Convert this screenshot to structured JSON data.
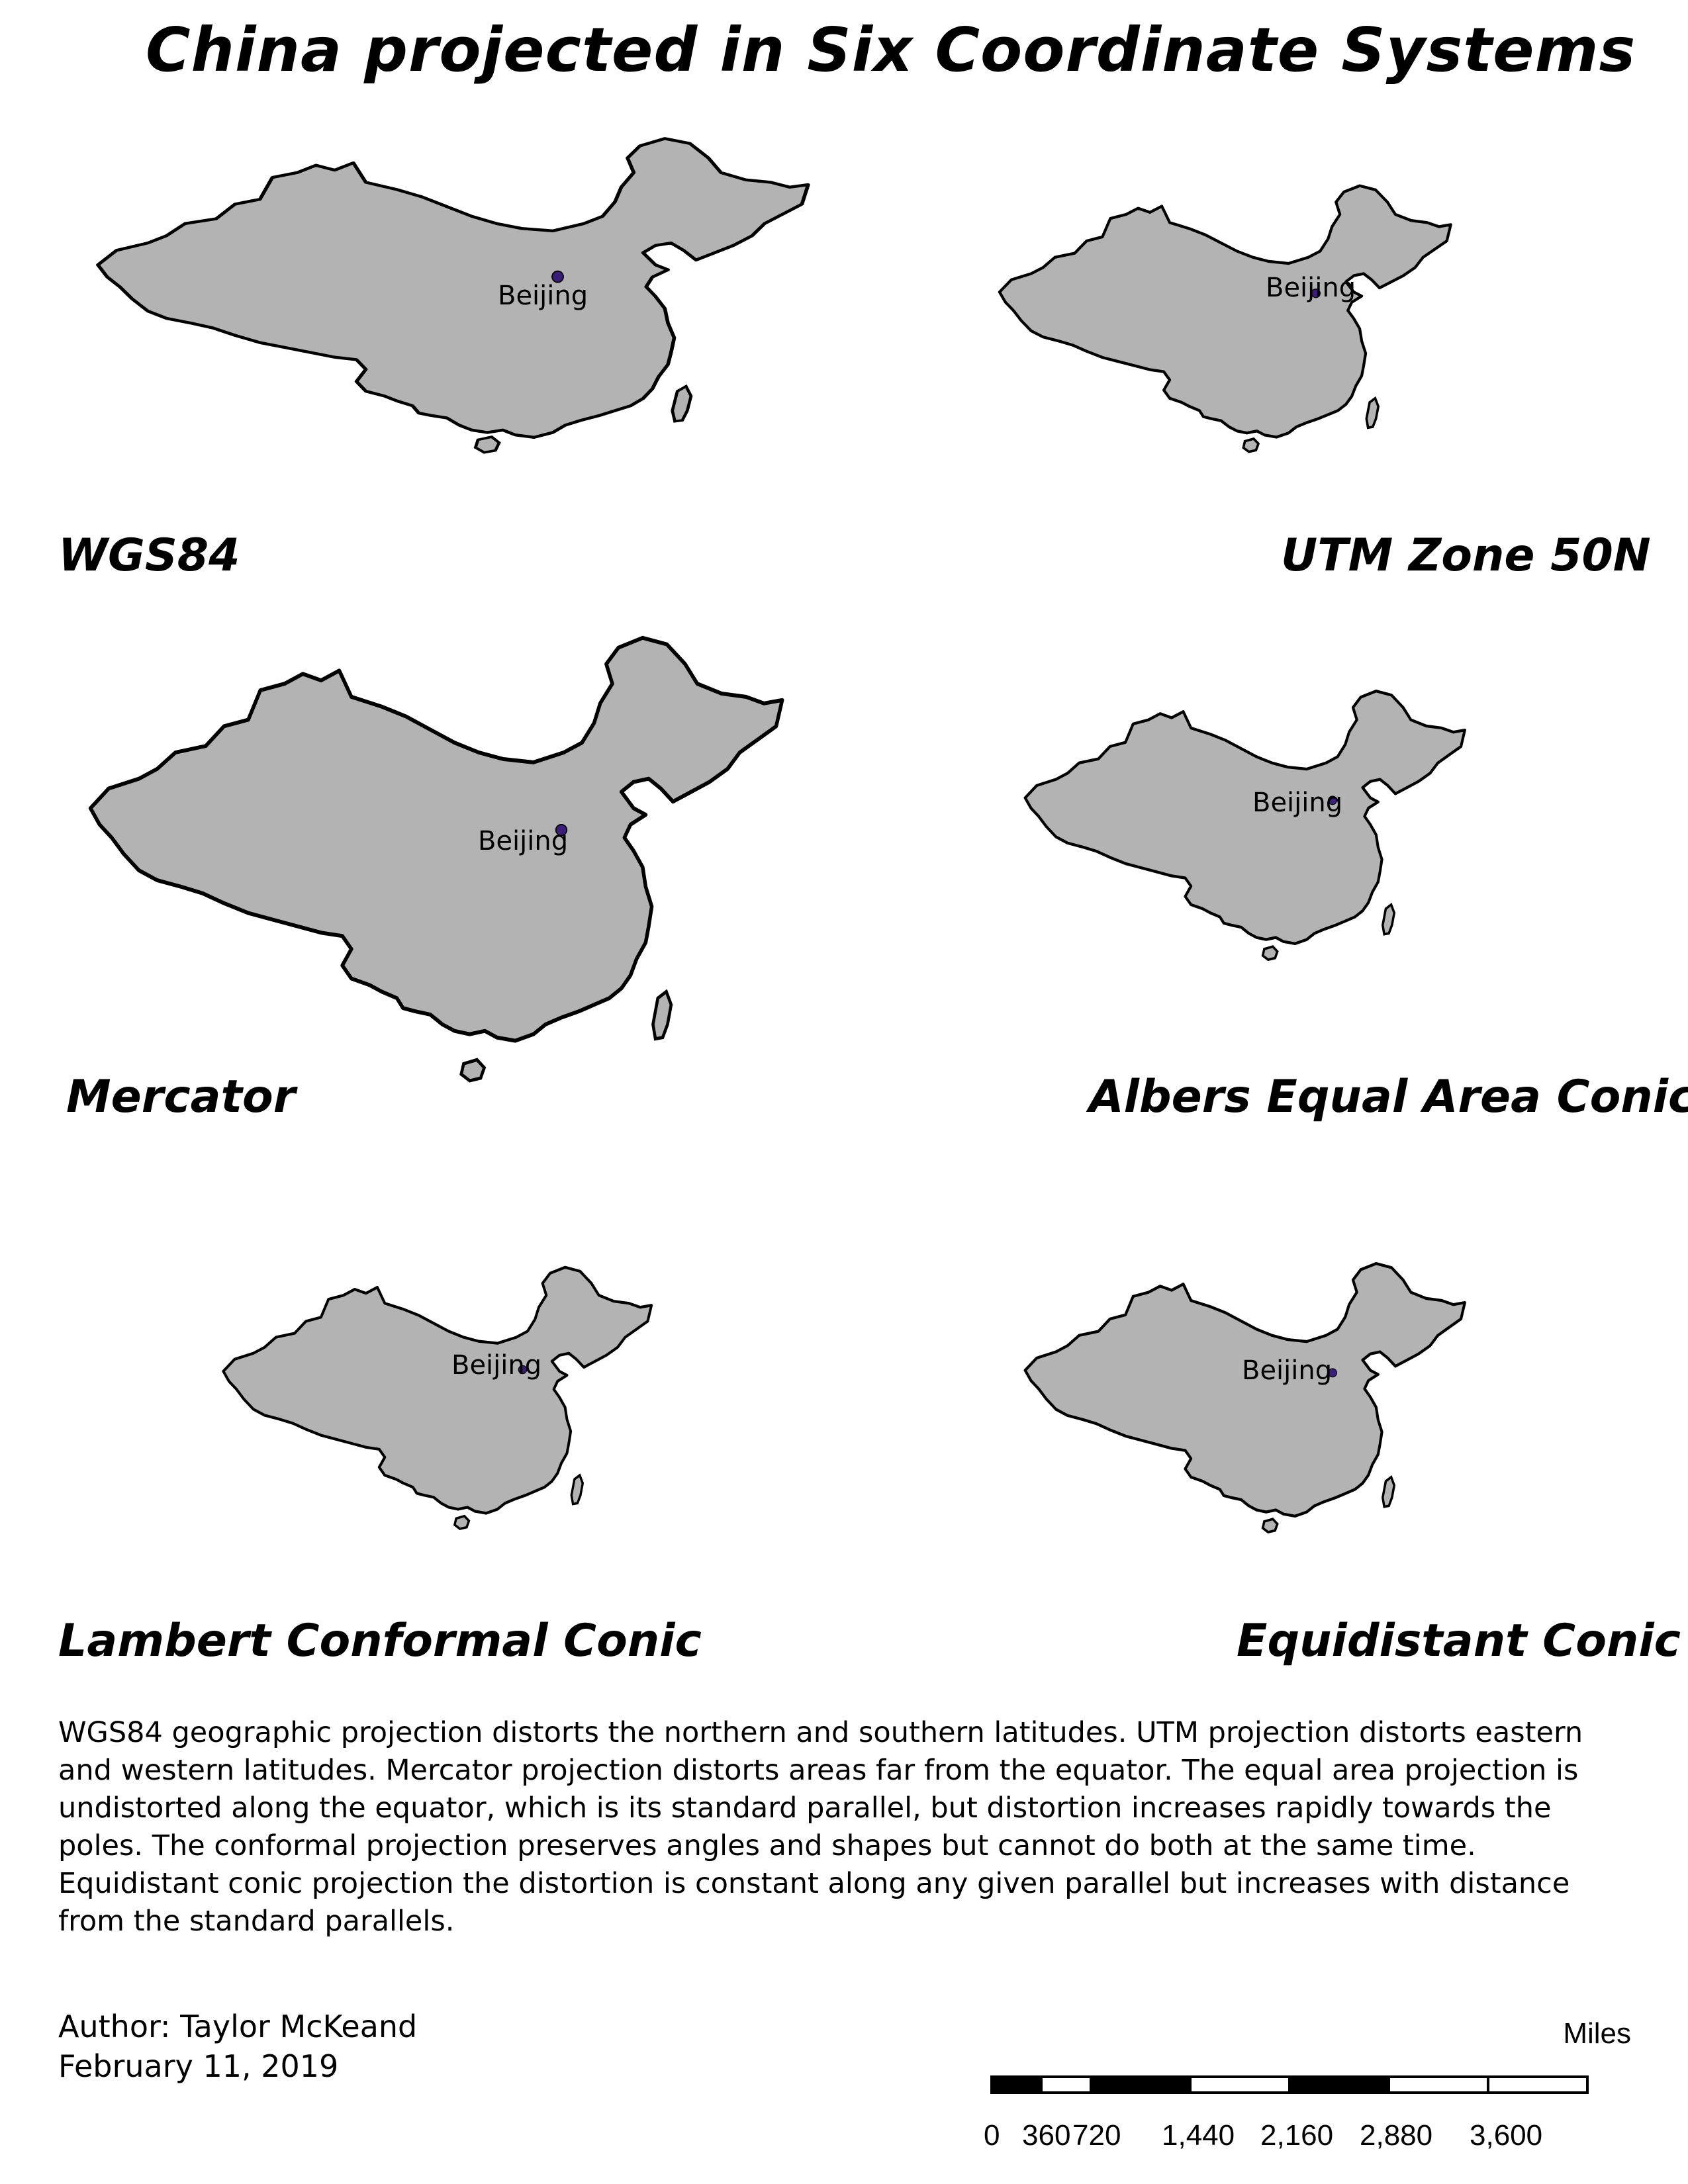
{
  "title": "China projected in Six Coordinate Systems",
  "colors": {
    "land": "#b3b3b3",
    "outline": "#000000",
    "city_marker": "#3a1f7a"
  },
  "city": "Beijing",
  "maps": [
    {
      "projection": "WGS84"
    },
    {
      "projection": "UTM Zone 50N"
    },
    {
      "projection": "Mercator"
    },
    {
      "projection": "Albers Equal Area Conic"
    },
    {
      "projection": "Lambert Conformal Conic"
    },
    {
      "projection": "Equidistant Conic"
    }
  ],
  "description": "WGS84 geographic projection distorts the northern and southern latitudes. UTM projection distorts eastern and western latitudes. Mercator projection distorts areas far from the equator. The equal area projection is undistorted along the equator, which is its standard parallel, but distortion increases rapidly towards the poles. The conformal projection preserves angles and shapes but cannot do both at the same time. Equidistant conic projection the distortion is constant along any given parallel but increases with distance from the standard parallels.",
  "author": "Author: Taylor McKeand",
  "date": "February 11, 2019",
  "scale": {
    "unit": "Miles",
    "ticks": [
      "0",
      "360",
      "720",
      "1,440",
      "2,160",
      "2,880",
      "3,600"
    ]
  }
}
